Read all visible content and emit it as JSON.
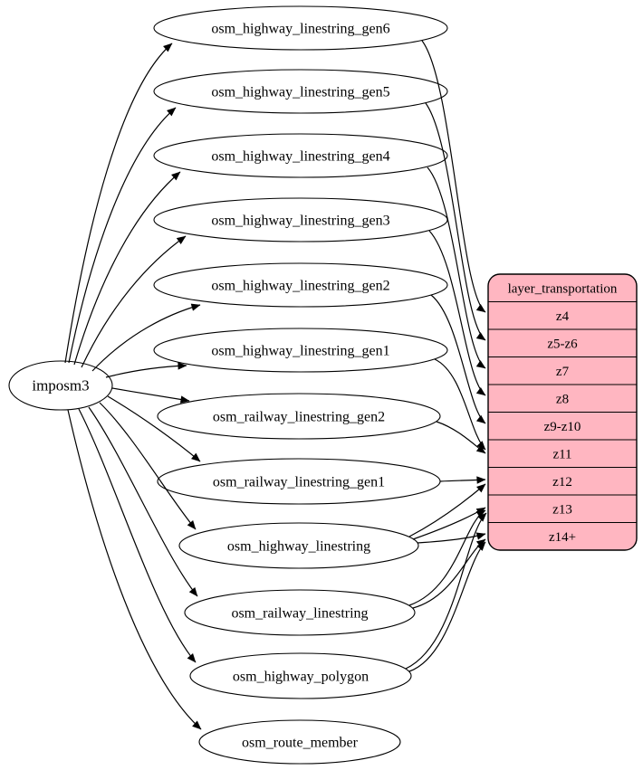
{
  "diagram": {
    "source": {
      "id": "imposm3",
      "label": "imposm3"
    },
    "tables": [
      {
        "id": "osm_highway_linestring_gen6",
        "label": "osm_highway_linestring_gen6"
      },
      {
        "id": "osm_highway_linestring_gen5",
        "label": "osm_highway_linestring_gen5"
      },
      {
        "id": "osm_highway_linestring_gen4",
        "label": "osm_highway_linestring_gen4"
      },
      {
        "id": "osm_highway_linestring_gen3",
        "label": "osm_highway_linestring_gen3"
      },
      {
        "id": "osm_highway_linestring_gen2",
        "label": "osm_highway_linestring_gen2"
      },
      {
        "id": "osm_highway_linestring_gen1",
        "label": "osm_highway_linestring_gen1"
      },
      {
        "id": "osm_railway_linestring_gen2",
        "label": "osm_railway_linestring_gen2"
      },
      {
        "id": "osm_railway_linestring_gen1",
        "label": "osm_railway_linestring_gen1"
      },
      {
        "id": "osm_highway_linestring",
        "label": "osm_highway_linestring"
      },
      {
        "id": "osm_railway_linestring",
        "label": "osm_railway_linestring"
      },
      {
        "id": "osm_highway_polygon",
        "label": "osm_highway_polygon"
      },
      {
        "id": "osm_route_member",
        "label": "osm_route_member"
      }
    ],
    "layer": {
      "id": "layer_transportation",
      "title": "layer_transportation",
      "rows": [
        {
          "id": "z4",
          "label": "z4"
        },
        {
          "id": "z5-z6",
          "label": "z5-z6"
        },
        {
          "id": "z7",
          "label": "z7"
        },
        {
          "id": "z8",
          "label": "z8"
        },
        {
          "id": "z9-z10",
          "label": "z9-z10"
        },
        {
          "id": "z11",
          "label": "z11"
        },
        {
          "id": "z12",
          "label": "z12"
        },
        {
          "id": "z13",
          "label": "z13"
        },
        {
          "id": "z14+",
          "label": "z14+"
        }
      ]
    },
    "edges": {
      "from_source_to": [
        "osm_highway_linestring_gen6",
        "osm_highway_linestring_gen5",
        "osm_highway_linestring_gen4",
        "osm_highway_linestring_gen3",
        "osm_highway_linestring_gen2",
        "osm_highway_linestring_gen1",
        "osm_railway_linestring_gen2",
        "osm_railway_linestring_gen1",
        "osm_highway_linestring",
        "osm_railway_linestring",
        "osm_highway_polygon",
        "osm_route_member"
      ],
      "table_to_layer": [
        {
          "from": "osm_highway_linestring_gen6",
          "row": "z4"
        },
        {
          "from": "osm_highway_linestring_gen5",
          "row": "z5-z6"
        },
        {
          "from": "osm_highway_linestring_gen4",
          "row": "z7"
        },
        {
          "from": "osm_highway_linestring_gen3",
          "row": "z8"
        },
        {
          "from": "osm_highway_linestring_gen2",
          "row": "z9-z10"
        },
        {
          "from": "osm_highway_linestring_gen1",
          "row": "z11"
        },
        {
          "from": "osm_railway_linestring_gen2",
          "row": "z11"
        },
        {
          "from": "osm_railway_linestring_gen1",
          "row": "z12"
        },
        {
          "from": "osm_highway_linestring",
          "row": "z12"
        },
        {
          "from": "osm_highway_linestring",
          "row": "z13"
        },
        {
          "from": "osm_highway_linestring",
          "row": "z14+"
        },
        {
          "from": "osm_railway_linestring",
          "row": "z13"
        },
        {
          "from": "osm_railway_linestring",
          "row": "z14+"
        },
        {
          "from": "osm_highway_polygon",
          "row": "z13"
        },
        {
          "from": "osm_highway_polygon",
          "row": "z14+"
        }
      ]
    },
    "colors": {
      "layer_fill": "#ffb6c1",
      "node_fill": "#ffffff",
      "stroke": "#000000",
      "background": "#ffffff"
    }
  }
}
